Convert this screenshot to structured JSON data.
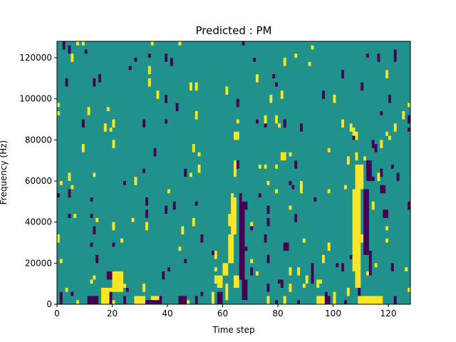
{
  "chart_data": {
    "type": "heatmap",
    "title": "Predicted : PM",
    "xlabel": "Time step",
    "ylabel": "Frequency (Hz)",
    "xlim": [
      0,
      128
    ],
    "ylim": [
      0,
      128000
    ],
    "x_ticks": [
      0,
      20,
      40,
      60,
      80,
      100,
      120
    ],
    "x_tick_labels": [
      "0",
      "20",
      "40",
      "60",
      "80",
      "100",
      "120"
    ],
    "y_ticks": [
      0,
      20000,
      40000,
      60000,
      80000,
      100000,
      120000
    ],
    "y_tick_labels": [
      "0",
      "20000",
      "40000",
      "60000",
      "80000",
      "100000",
      "120000"
    ],
    "n_time_steps": 128,
    "n_freq_bins": 64,
    "bin_height_hz": 2000,
    "colormap": "viridis",
    "color_levels": {
      "low": "#440154",
      "mid": "#21918c",
      "high": "#fde725"
    },
    "background_level": "mid",
    "grid": false,
    "cells": [
      {
        "level": "high",
        "x0": 16,
        "x1": 19,
        "f0": 0,
        "f1": 8000
      },
      {
        "level": "high",
        "x0": 20,
        "x1": 24,
        "f0": 6000,
        "f1": 16000
      },
      {
        "level": "high",
        "x0": 20,
        "x1": 21,
        "f0": 0,
        "f1": 2000
      },
      {
        "level": "high",
        "x0": 28,
        "x1": 32,
        "f0": 0,
        "f1": 4000
      },
      {
        "level": "high",
        "x0": 34,
        "x1": 37,
        "f0": 2000,
        "f1": 4000
      },
      {
        "level": "high",
        "x0": 56,
        "x1": 57,
        "f0": 0,
        "f1": 6000
      },
      {
        "level": "high",
        "x0": 58,
        "x1": 60,
        "f0": 8000,
        "f1": 14000
      },
      {
        "level": "high",
        "x0": 60,
        "x1": 62,
        "f0": 14000,
        "f1": 20000
      },
      {
        "level": "high",
        "x0": 61,
        "x1": 62,
        "f0": 2000,
        "f1": 10000
      },
      {
        "level": "high",
        "x0": 62,
        "x1": 64,
        "f0": 20000,
        "f1": 34000
      },
      {
        "level": "high",
        "x0": 63,
        "x1": 65,
        "f0": 34000,
        "f1": 52000
      },
      {
        "level": "high",
        "x0": 64,
        "x1": 66,
        "f0": 8000,
        "f1": 14000
      },
      {
        "level": "high",
        "x0": 62,
        "x1": 63,
        "f0": 38000,
        "f1": 44000
      },
      {
        "level": "high",
        "x0": 64,
        "x1": 66,
        "f0": 80000,
        "f1": 84000
      },
      {
        "level": "high",
        "x0": 64,
        "x1": 65,
        "f0": 66000,
        "f1": 70000
      },
      {
        "level": "high",
        "x0": 76,
        "x1": 77,
        "f0": 0,
        "f1": 4000
      },
      {
        "level": "high",
        "x0": 82,
        "x1": 83,
        "f0": 0,
        "f1": 4000
      },
      {
        "level": "high",
        "x0": 84,
        "x1": 85,
        "f0": 6000,
        "f1": 10000
      },
      {
        "level": "high",
        "x0": 94,
        "x1": 97,
        "f0": 0,
        "f1": 4000
      },
      {
        "level": "high",
        "x0": 100,
        "x1": 101,
        "f0": 0,
        "f1": 6000
      },
      {
        "level": "high",
        "x0": 105,
        "x1": 106,
        "f0": 4000,
        "f1": 8000
      },
      {
        "level": "high",
        "x0": 107,
        "x1": 110,
        "f0": 16000,
        "f1": 56000
      },
      {
        "level": "high",
        "x0": 108,
        "x1": 111,
        "f0": 56000,
        "f1": 68000
      },
      {
        "level": "high",
        "x0": 108,
        "x1": 110,
        "f0": 8000,
        "f1": 16000
      },
      {
        "level": "high",
        "x0": 109,
        "x1": 115,
        "f0": 0,
        "f1": 4000
      },
      {
        "level": "high",
        "x0": 108,
        "x1": 109,
        "f0": 70000,
        "f1": 74000
      },
      {
        "level": "high",
        "x0": 110,
        "x1": 111,
        "f0": 30000,
        "f1": 34000
      },
      {
        "level": "high",
        "x0": 107,
        "x1": 108,
        "f0": 82000,
        "f1": 86000
      },
      {
        "level": "high",
        "x0": 115,
        "x1": 118,
        "f0": 0,
        "f1": 4000
      },
      {
        "level": "high",
        "x0": 116,
        "x1": 117,
        "f0": 60000,
        "f1": 64000
      },
      {
        "level": "low",
        "x0": 1,
        "x1": 2,
        "f0": 0,
        "f1": 6000
      },
      {
        "level": "low",
        "x0": 2,
        "x1": 3,
        "f0": 124000,
        "f1": 128000
      },
      {
        "level": "low",
        "x0": 4,
        "x1": 5,
        "f0": 122000,
        "f1": 126000
      },
      {
        "level": "low",
        "x0": 11,
        "x1": 15,
        "f0": 0,
        "f1": 4000
      },
      {
        "level": "low",
        "x0": 18,
        "x1": 20,
        "f0": 12000,
        "f1": 16000
      },
      {
        "level": "low",
        "x0": 19,
        "x1": 20,
        "f0": 0,
        "f1": 6000
      },
      {
        "level": "low",
        "x0": 24,
        "x1": 25,
        "f0": 0,
        "f1": 4000
      },
      {
        "level": "low",
        "x0": 32,
        "x1": 37,
        "f0": 0,
        "f1": 2000
      },
      {
        "level": "low",
        "x0": 44,
        "x1": 47,
        "f0": 0,
        "f1": 4000
      },
      {
        "level": "low",
        "x0": 50,
        "x1": 51,
        "f0": 0,
        "f1": 4000
      },
      {
        "level": "low",
        "x0": 58,
        "x1": 60,
        "f0": 0,
        "f1": 6000
      },
      {
        "level": "low",
        "x0": 66,
        "x1": 68,
        "f0": 12000,
        "f1": 50000
      },
      {
        "level": "low",
        "x0": 67,
        "x1": 69,
        "f0": 2000,
        "f1": 12000
      },
      {
        "level": "low",
        "x0": 70,
        "x1": 71,
        "f0": 14000,
        "f1": 18000
      },
      {
        "level": "low",
        "x0": 82,
        "x1": 84,
        "f0": 26000,
        "f1": 30000
      },
      {
        "level": "low",
        "x0": 92,
        "x1": 93,
        "f0": 10000,
        "f1": 20000
      },
      {
        "level": "low",
        "x0": 97,
        "x1": 99,
        "f0": 0,
        "f1": 4000
      },
      {
        "level": "low",
        "x0": 104,
        "x1": 105,
        "f0": 0,
        "f1": 2000
      },
      {
        "level": "low",
        "x0": 111,
        "x1": 113,
        "f0": 24000,
        "f1": 56000
      },
      {
        "level": "low",
        "x0": 112,
        "x1": 114,
        "f0": 60000,
        "f1": 70000
      },
      {
        "level": "low",
        "x0": 113,
        "x1": 114,
        "f0": 14000,
        "f1": 26000
      },
      {
        "level": "low",
        "x0": 117,
        "x1": 119,
        "f0": 54000,
        "f1": 58000
      },
      {
        "level": "low",
        "x0": 118,
        "x1": 120,
        "f0": 42000,
        "f1": 46000
      },
      {
        "level": "low",
        "x0": 122,
        "x1": 123,
        "f0": 118000,
        "f1": 124000
      },
      {
        "level": "low",
        "x0": 127,
        "x1": 128,
        "f0": 46000,
        "f1": 50000
      },
      {
        "level": "low",
        "x0": 127,
        "x1": 128,
        "f0": 88000,
        "f1": 92000
      }
    ]
  }
}
